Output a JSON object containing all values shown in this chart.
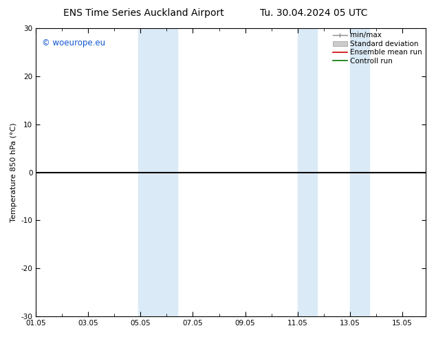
{
  "title_left": "ENS Time Series Auckland Airport",
  "title_right": "Tu. 30.04.2024 05 UTC",
  "ylabel": "Temperature 850 hPa (°C)",
  "ylim": [
    -30,
    30
  ],
  "yticks": [
    -30,
    -20,
    -10,
    0,
    10,
    20,
    30
  ],
  "xtick_labels": [
    "01.05",
    "03.05",
    "05.05",
    "07.05",
    "09.05",
    "11.05",
    "13.05",
    "15.05"
  ],
  "xtick_positions": [
    0,
    2,
    4,
    6,
    8,
    10,
    12,
    14
  ],
  "xlim": [
    0,
    14.9
  ],
  "shaded_bands": [
    {
      "x_start": 3.85,
      "x_end": 4.55,
      "color": "#daeaf6"
    },
    {
      "x_start": 4.55,
      "x_end": 5.45,
      "color": "#daeaf6"
    },
    {
      "x_start": 10.0,
      "x_end": 10.7,
      "color": "#daeaf6"
    },
    {
      "x_start": 12.0,
      "x_end": 12.7,
      "color": "#daeaf6"
    }
  ],
  "watermark": "© woeurope.eu",
  "watermark_color": "#1155cc",
  "legend_items": [
    {
      "label": "min/max",
      "type": "minmax"
    },
    {
      "label": "Standard deviation",
      "type": "patch",
      "color": "#cccccc"
    },
    {
      "label": "Ensemble mean run",
      "type": "line",
      "color": "#cc0000"
    },
    {
      "label": "Controll run",
      "type": "line",
      "color": "#007700"
    }
  ],
  "hline_y": 0,
  "hline_color": "#000000",
  "bg_color": "#ffffff",
  "title_fontsize": 10,
  "axis_label_fontsize": 8,
  "tick_fontsize": 7.5,
  "legend_fontsize": 7.5
}
